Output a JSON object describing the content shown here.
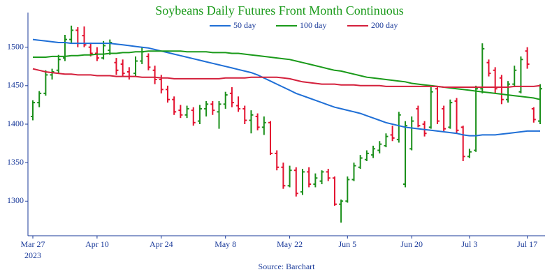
{
  "chart_data": {
    "type": "ohlc",
    "title": "Soybeans Daily Futures Front Month Continuous",
    "source": "Source: Barchart",
    "x_year": "2023",
    "categories": [
      "Mar 27",
      null,
      null,
      null,
      null,
      null,
      null,
      null,
      null,
      null,
      "Apr 10",
      null,
      null,
      null,
      null,
      null,
      null,
      null,
      null,
      null,
      "Apr 24",
      null,
      null,
      null,
      null,
      null,
      null,
      null,
      null,
      null,
      "May 8",
      null,
      null,
      null,
      null,
      null,
      null,
      null,
      null,
      null,
      "May 22",
      null,
      null,
      null,
      null,
      null,
      null,
      null,
      null,
      "Jun 5",
      null,
      null,
      null,
      null,
      null,
      null,
      null,
      null,
      null,
      "Jun 20",
      null,
      null,
      null,
      null,
      null,
      null,
      null,
      null,
      "Jul 3",
      null,
      null,
      null,
      null,
      null,
      null,
      null,
      null,
      "Jul 17",
      null,
      null
    ],
    "ohlc": {
      "up_color": "#1a8f1a",
      "down_color": "#e3102e",
      "open": [
        1410,
        1428,
        1440,
        1464,
        1470,
        1486,
        1510,
        1522,
        1515,
        1500,
        1492,
        1486,
        1496,
        1480,
        1478,
        1468,
        1466,
        1482,
        1488,
        1470,
        1458,
        1445,
        1432,
        1418,
        1412,
        1418,
        1404,
        1420,
        1426,
        1416,
        1426,
        1440,
        1424,
        1420,
        1405,
        1410,
        1396,
        1402,
        1362,
        1344,
        1320,
        1340,
        1312,
        1338,
        1322,
        1326,
        1338,
        1330,
        1296,
        1300,
        1328,
        1344,
        1354,
        1360,
        1366,
        1372,
        1386,
        1380,
        1322,
        1368,
        1420,
        1400,
        1396,
        1446,
        1420,
        1396,
        1430,
        1396,
        1358,
        1366,
        1446,
        1480,
        1470,
        1460,
        1432,
        1452,
        1442,
        1495,
        1420,
        1404
      ],
      "high": [
        1431,
        1443,
        1470,
        1472,
        1490,
        1516,
        1528,
        1526,
        1527,
        1506,
        1500,
        1508,
        1510,
        1486,
        1484,
        1474,
        1488,
        1500,
        1492,
        1476,
        1464,
        1450,
        1436,
        1425,
        1424,
        1422,
        1425,
        1430,
        1430,
        1430,
        1442,
        1448,
        1436,
        1424,
        1418,
        1414,
        1410,
        1404,
        1366,
        1350,
        1346,
        1344,
        1342,
        1344,
        1336,
        1340,
        1342,
        1332,
        1302,
        1332,
        1350,
        1360,
        1366,
        1372,
        1378,
        1388,
        1398,
        1416,
        1404,
        1410,
        1424,
        1404,
        1448,
        1448,
        1424,
        1432,
        1434,
        1398,
        1368,
        1450,
        1505,
        1484,
        1474,
        1464,
        1456,
        1476,
        1488,
        1500,
        1422,
        1452
      ],
      "low": [
        1405,
        1422,
        1437,
        1458,
        1466,
        1482,
        1506,
        1500,
        1500,
        1488,
        1482,
        1484,
        1490,
        1464,
        1462,
        1458,
        1462,
        1478,
        1470,
        1452,
        1440,
        1428,
        1412,
        1408,
        1408,
        1398,
        1400,
        1410,
        1412,
        1394,
        1420,
        1422,
        1416,
        1400,
        1388,
        1392,
        1386,
        1360,
        1340,
        1316,
        1318,
        1306,
        1308,
        1318,
        1318,
        1322,
        1326,
        1294,
        1272,
        1298,
        1326,
        1342,
        1352,
        1356,
        1362,
        1370,
        1378,
        1376,
        1318,
        1366,
        1396,
        1384,
        1394,
        1400,
        1390,
        1394,
        1388,
        1352,
        1356,
        1364,
        1440,
        1462,
        1440,
        1426,
        1428,
        1448,
        1440,
        1472,
        1402,
        1400
      ],
      "close": [
        1428,
        1440,
        1464,
        1468,
        1484,
        1510,
        1522,
        1505,
        1503,
        1492,
        1486,
        1502,
        1506,
        1470,
        1466,
        1462,
        1482,
        1494,
        1474,
        1458,
        1445,
        1432,
        1416,
        1412,
        1420,
        1402,
        1420,
        1426,
        1418,
        1426,
        1438,
        1428,
        1420,
        1405,
        1412,
        1396,
        1402,
        1362,
        1344,
        1320,
        1340,
        1310,
        1338,
        1322,
        1330,
        1338,
        1330,
        1296,
        1300,
        1328,
        1346,
        1356,
        1362,
        1368,
        1374,
        1384,
        1382,
        1412,
        1398,
        1404,
        1398,
        1388,
        1442,
        1404,
        1394,
        1428,
        1392,
        1358,
        1364,
        1446,
        1498,
        1466,
        1446,
        1432,
        1452,
        1470,
        1484,
        1478,
        1406,
        1446
      ]
    },
    "series": [
      {
        "name": "50 day",
        "color": "#1f6fd6",
        "values": [
          1510,
          1509,
          1508,
          1507,
          1506,
          1506,
          1505,
          1505,
          1505,
          1505,
          1505,
          1505,
          1505,
          1504,
          1503,
          1502,
          1501,
          1500,
          1499,
          1497,
          1495,
          1493,
          1491,
          1489,
          1487,
          1485,
          1483,
          1481,
          1479,
          1477,
          1475,
          1473,
          1471,
          1469,
          1467,
          1464,
          1460,
          1456,
          1452,
          1448,
          1444,
          1440,
          1437,
          1434,
          1431,
          1428,
          1425,
          1422,
          1420,
          1418,
          1416,
          1414,
          1411,
          1408,
          1405,
          1402,
          1400,
          1398,
          1396,
          1395,
          1394,
          1393,
          1392,
          1391,
          1390,
          1389,
          1388,
          1386,
          1385,
          1385,
          1386,
          1386,
          1386,
          1387,
          1388,
          1389,
          1390,
          1391,
          1391,
          1391
        ]
      },
      {
        "name": "100 day",
        "color": "#1a9a1a",
        "values": [
          1487,
          1487,
          1487,
          1488,
          1488,
          1488,
          1489,
          1489,
          1490,
          1490,
          1491,
          1491,
          1492,
          1492,
          1493,
          1493,
          1494,
          1494,
          1495,
          1495,
          1495,
          1495,
          1495,
          1495,
          1494,
          1494,
          1494,
          1494,
          1493,
          1493,
          1493,
          1492,
          1492,
          1491,
          1490,
          1489,
          1488,
          1487,
          1486,
          1485,
          1484,
          1482,
          1480,
          1478,
          1476,
          1474,
          1472,
          1470,
          1469,
          1467,
          1465,
          1463,
          1461,
          1460,
          1459,
          1458,
          1457,
          1456,
          1455,
          1453,
          1452,
          1451,
          1450,
          1449,
          1448,
          1447,
          1446,
          1445,
          1444,
          1443,
          1442,
          1441,
          1440,
          1439,
          1438,
          1437,
          1436,
          1435,
          1434,
          1432
        ]
      },
      {
        "name": "200 day",
        "color": "#d4203c",
        "values": [
          1472,
          1470,
          1468,
          1467,
          1466,
          1465,
          1465,
          1464,
          1464,
          1464,
          1463,
          1463,
          1463,
          1462,
          1462,
          1462,
          1462,
          1461,
          1461,
          1461,
          1460,
          1460,
          1459,
          1459,
          1459,
          1459,
          1459,
          1459,
          1459,
          1459,
          1460,
          1460,
          1460,
          1460,
          1461,
          1461,
          1461,
          1461,
          1461,
          1460,
          1459,
          1457,
          1455,
          1454,
          1453,
          1452,
          1452,
          1452,
          1451,
          1451,
          1451,
          1450,
          1450,
          1450,
          1450,
          1449,
          1449,
          1449,
          1449,
          1449,
          1449,
          1449,
          1449,
          1449,
          1448,
          1448,
          1448,
          1448,
          1448,
          1448,
          1448,
          1448,
          1448,
          1448,
          1448,
          1449,
          1449,
          1449,
          1449,
          1450
        ]
      }
    ],
    "ylim": [
      1255,
      1545
    ],
    "yticks": [
      1300,
      1350,
      1400,
      1450,
      1500
    ]
  }
}
